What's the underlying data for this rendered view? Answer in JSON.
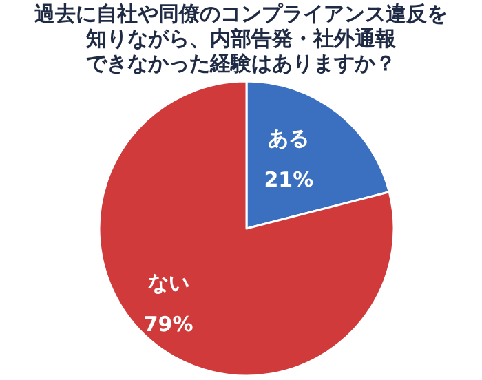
{
  "chart_data": {
    "type": "pie",
    "title": "過去に自社や同僚のコンプライアンス違反を知りながら、内部告発・社外通報できなかった経験はありますか？",
    "categories": [
      "ある",
      "ない"
    ],
    "values": [
      21,
      79
    ],
    "colors": [
      "#3b6fc0",
      "#d03a3a"
    ],
    "value_labels": [
      "21%",
      "79%"
    ],
    "legend": false
  }
}
